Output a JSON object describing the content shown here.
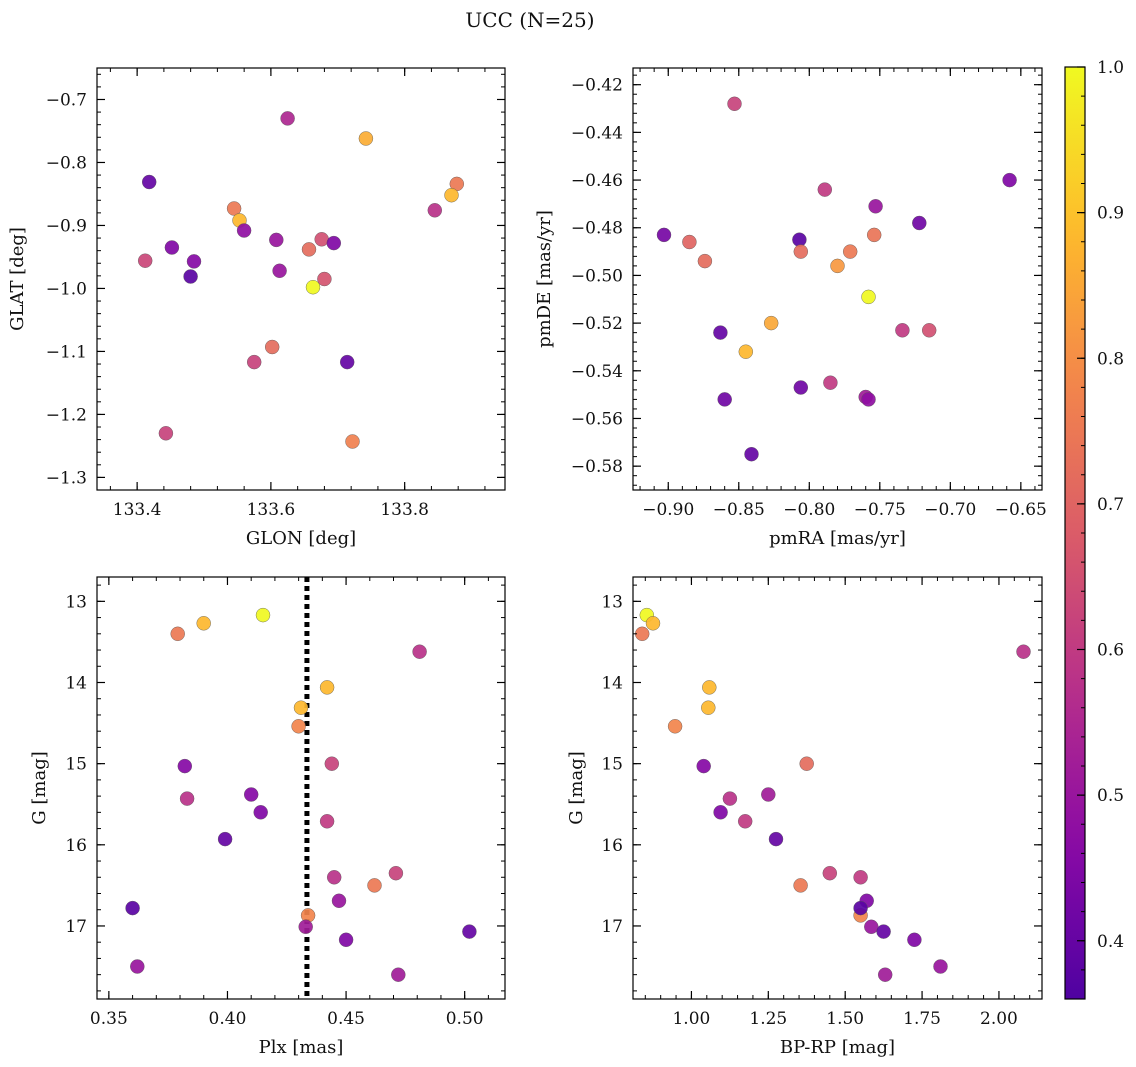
{
  "suptitle": "UCC (N=25)",
  "colorbar": {
    "range": [
      0.36,
      1.0
    ],
    "ticks": [
      0.4,
      0.5,
      0.6,
      0.7,
      0.8,
      0.9,
      1.0
    ],
    "tick_labels": [
      "0.4",
      "0.5",
      "0.6",
      "0.7",
      "0.8",
      "0.9",
      "1.0"
    ],
    "colormap": "plasma"
  },
  "colors": {
    "threshold_line": "#000000",
    "frame": "#000000"
  },
  "chart_data": [
    {
      "type": "scatter",
      "id": "glon-glat",
      "xlabel": "GLON [deg]",
      "ylabel": "GLAT [deg]",
      "xlim": [
        133.34,
        133.95
      ],
      "ylim": [
        -1.32,
        -0.65
      ],
      "y_inverted": false,
      "xticks": [
        133.4,
        133.6,
        133.8
      ],
      "xtick_labels": [
        "133.4",
        "133.6",
        "133.8"
      ],
      "yticks": [
        -0.7,
        -0.8,
        -0.9,
        -1.0,
        -1.1,
        -1.2,
        -1.3
      ],
      "ytick_labels": [
        "−0.7",
        "−0.8",
        "−0.9",
        "−1.0",
        "−1.1",
        "−1.2",
        "−1.3"
      ],
      "x": [
        133.625,
        133.742,
        133.418,
        133.878,
        133.87,
        133.845,
        133.545,
        133.553,
        133.56,
        133.452,
        133.412,
        133.485,
        133.608,
        133.657,
        133.676,
        133.694,
        133.48,
        133.613,
        133.68,
        133.663,
        133.602,
        133.575,
        133.714,
        133.443,
        133.722
      ],
      "y": [
        -0.73,
        -0.762,
        -0.831,
        -0.834,
        -0.852,
        -0.876,
        -0.873,
        -0.892,
        -0.908,
        -0.935,
        -0.956,
        -0.957,
        -0.923,
        -0.938,
        -0.922,
        -0.928,
        -0.981,
        -0.972,
        -0.985,
        -0.998,
        -1.093,
        -1.117,
        -1.117,
        -1.23,
        -1.243
      ],
      "c": [
        0.55,
        0.86,
        0.4,
        0.75,
        0.88,
        0.58,
        0.75,
        0.88,
        0.48,
        0.45,
        0.63,
        0.46,
        0.5,
        0.72,
        0.65,
        0.45,
        0.38,
        0.5,
        0.66,
        1.0,
        0.72,
        0.62,
        0.4,
        0.62,
        0.77
      ]
    },
    {
      "type": "scatter",
      "id": "pmra-pmde",
      "xlabel": "pmRA [mas/yr]",
      "ylabel": "pmDE [mas/yr]",
      "xlim": [
        -0.925,
        -0.635
      ],
      "ylim": [
        -0.59,
        -0.413
      ],
      "y_inverted": false,
      "xticks": [
        -0.9,
        -0.85,
        -0.8,
        -0.75,
        -0.7,
        -0.65
      ],
      "xtick_labels": [
        "−0.90",
        "−0.85",
        "−0.80",
        "−0.75",
        "−0.70",
        "−0.65"
      ],
      "yticks": [
        -0.42,
        -0.44,
        -0.46,
        -0.48,
        -0.5,
        -0.52,
        -0.54,
        -0.56,
        -0.58
      ],
      "ytick_labels": [
        "−0.42",
        "−0.44",
        "−0.46",
        "−0.48",
        "−0.50",
        "−0.52",
        "−0.54",
        "−0.56",
        "−0.58"
      ],
      "x": [
        -0.853,
        -0.658,
        -0.789,
        -0.753,
        -0.722,
        -0.903,
        -0.885,
        -0.807,
        -0.874,
        -0.806,
        -0.771,
        -0.754,
        -0.78,
        -0.758,
        -0.827,
        -0.863,
        -0.734,
        -0.715,
        -0.845,
        -0.806,
        -0.785,
        -0.76,
        -0.758,
        -0.86,
        -0.841
      ],
      "y": [
        -0.428,
        -0.46,
        -0.464,
        -0.471,
        -0.478,
        -0.483,
        -0.486,
        -0.485,
        -0.494,
        -0.49,
        -0.49,
        -0.483,
        -0.496,
        -0.509,
        -0.52,
        -0.524,
        -0.523,
        -0.523,
        -0.532,
        -0.547,
        -0.545,
        -0.551,
        -0.552,
        -0.552,
        -0.575
      ],
      "c": [
        0.62,
        0.45,
        0.6,
        0.5,
        0.42,
        0.43,
        0.7,
        0.38,
        0.72,
        0.72,
        0.75,
        0.74,
        0.82,
        1.0,
        0.85,
        0.4,
        0.6,
        0.65,
        0.88,
        0.42,
        0.6,
        0.52,
        0.48,
        0.42,
        0.4
      ]
    },
    {
      "type": "scatter",
      "id": "plx-g",
      "xlabel": "Plx [mas]",
      "ylabel": "G [mag]",
      "xlim": [
        0.345,
        0.517
      ],
      "ylim": [
        12.7,
        17.9
      ],
      "y_inverted": true,
      "xticks": [
        0.35,
        0.4,
        0.45,
        0.5
      ],
      "xtick_labels": [
        "0.35",
        "0.40",
        "0.45",
        "0.50"
      ],
      "yticks": [
        13,
        14,
        15,
        16,
        17
      ],
      "ytick_labels": [
        "13",
        "14",
        "15",
        "16",
        "17"
      ],
      "vline": 0.4335,
      "x": [
        0.415,
        0.39,
        0.379,
        0.481,
        0.442,
        0.431,
        0.43,
        0.444,
        0.382,
        0.383,
        0.41,
        0.414,
        0.442,
        0.399,
        0.445,
        0.471,
        0.462,
        0.447,
        0.434,
        0.433,
        0.36,
        0.502,
        0.45,
        0.362,
        0.472
      ],
      "y": [
        13.17,
        13.27,
        13.4,
        13.62,
        14.06,
        14.31,
        14.54,
        15.0,
        15.03,
        15.43,
        15.38,
        15.6,
        15.71,
        15.93,
        16.4,
        16.35,
        16.5,
        16.69,
        16.87,
        17.01,
        16.78,
        17.07,
        17.17,
        17.5,
        17.6
      ],
      "c": [
        1.0,
        0.88,
        0.75,
        0.58,
        0.88,
        0.88,
        0.78,
        0.62,
        0.46,
        0.58,
        0.46,
        0.45,
        0.6,
        0.4,
        0.58,
        0.62,
        0.75,
        0.5,
        0.78,
        0.52,
        0.38,
        0.4,
        0.45,
        0.5,
        0.52
      ]
    },
    {
      "type": "scatter",
      "id": "bprp-g",
      "xlabel": "BP-RP [mag]",
      "ylabel": "G [mag]",
      "xlim": [
        0.81,
        2.14
      ],
      "ylim": [
        12.7,
        17.9
      ],
      "y_inverted": true,
      "xticks": [
        1.0,
        1.25,
        1.5,
        1.75,
        2.0
      ],
      "xtick_labels": [
        "1.00",
        "1.25",
        "1.50",
        "1.75",
        "2.00"
      ],
      "yticks": [
        13,
        14,
        15,
        16,
        17
      ],
      "ytick_labels": [
        "13",
        "14",
        "15",
        "16",
        "17"
      ],
      "x": [
        0.855,
        0.875,
        0.84,
        2.08,
        1.058,
        1.055,
        0.947,
        1.375,
        1.04,
        1.125,
        1.25,
        1.095,
        1.175,
        1.275,
        1.45,
        1.55,
        1.355,
        1.57,
        1.55,
        1.585,
        1.55,
        1.625,
        1.725,
        1.81,
        1.63
      ],
      "y": [
        13.17,
        13.27,
        13.4,
        13.62,
        14.06,
        14.31,
        14.54,
        15.0,
        15.03,
        15.43,
        15.38,
        15.6,
        15.71,
        15.93,
        16.35,
        16.4,
        16.5,
        16.69,
        16.87,
        17.01,
        16.78,
        17.07,
        17.17,
        17.5,
        17.6
      ],
      "c": [
        1.0,
        0.88,
        0.75,
        0.58,
        0.88,
        0.88,
        0.78,
        0.72,
        0.46,
        0.58,
        0.52,
        0.45,
        0.6,
        0.4,
        0.62,
        0.6,
        0.75,
        0.45,
        0.78,
        0.5,
        0.38,
        0.4,
        0.45,
        0.5,
        0.52
      ]
    }
  ]
}
